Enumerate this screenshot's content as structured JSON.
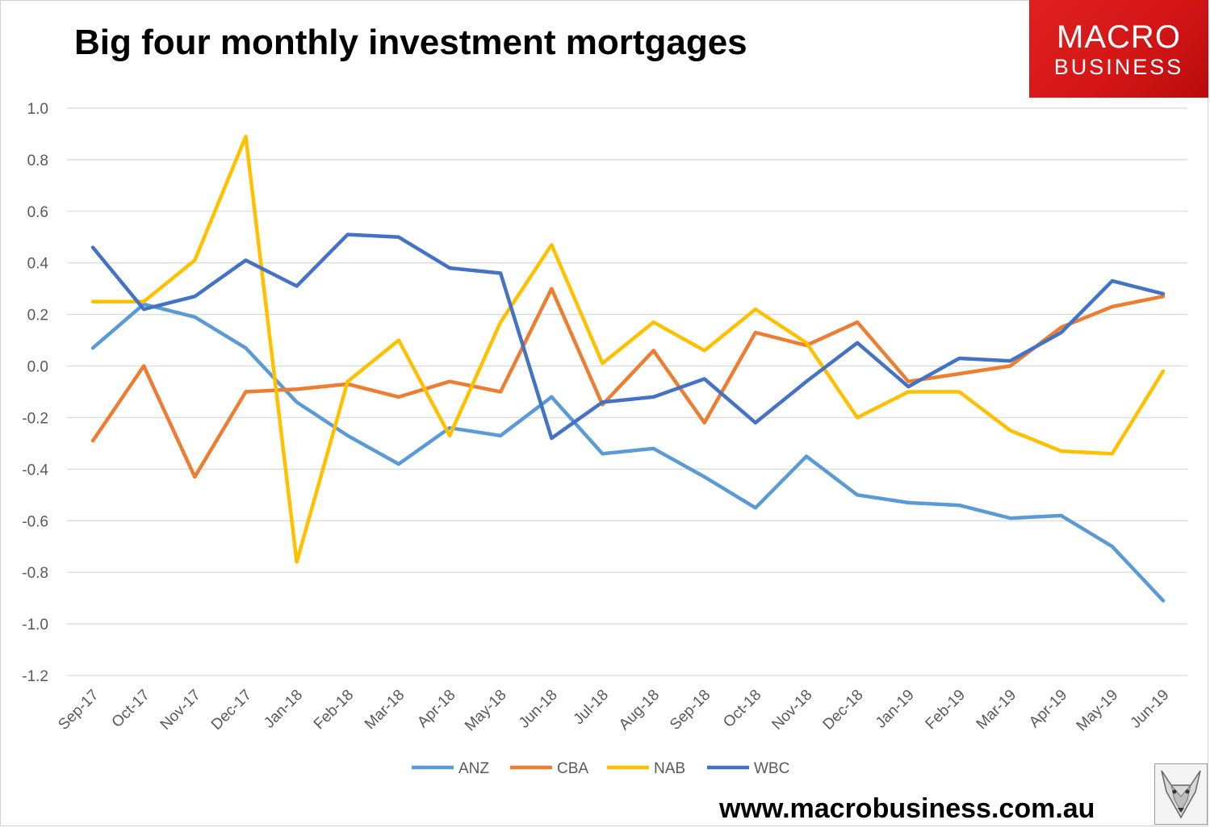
{
  "header": {
    "title": "Big four monthly investment mortgages"
  },
  "logo": {
    "line1": "MACRO",
    "line2": "BUSINESS"
  },
  "footer": {
    "website": "www.macrobusiness.com.au"
  },
  "icons": {
    "mascot": "fox-icon"
  },
  "chart_data": {
    "type": "line",
    "title": "Big four monthly investment mortgages",
    "xlabel": "",
    "ylabel": "",
    "ylim": [
      -1.2,
      1.0
    ],
    "yticks": [
      "1.0",
      "0.8",
      "0.6",
      "0.4",
      "0.2",
      "0.0",
      "-0.2",
      "-0.4",
      "-0.6",
      "-0.8",
      "-1.0",
      "-1.2"
    ],
    "grid": true,
    "legend": "bottom",
    "categories": [
      "Sep-17",
      "Oct-17",
      "Nov-17",
      "Dec-17",
      "Jan-18",
      "Feb-18",
      "Mar-18",
      "Apr-18",
      "May-18",
      "Jun-18",
      "Jul-18",
      "Aug-18",
      "Sep-18",
      "Oct-18",
      "Nov-18",
      "Dec-18",
      "Jan-19",
      "Feb-19",
      "Mar-19",
      "Apr-19",
      "May-19",
      "Jun-19"
    ],
    "series": [
      {
        "name": "ANZ",
        "color": "#5B9BD5",
        "values": [
          0.07,
          0.24,
          0.19,
          0.07,
          -0.14,
          -0.27,
          -0.38,
          -0.24,
          -0.27,
          -0.12,
          -0.34,
          -0.32,
          -0.43,
          -0.55,
          -0.35,
          -0.5,
          -0.53,
          -0.54,
          -0.59,
          -0.58,
          -0.7,
          -0.91
        ]
      },
      {
        "name": "CBA",
        "color": "#ED7D31",
        "values": [
          -0.29,
          0.0,
          -0.43,
          -0.1,
          -0.09,
          -0.07,
          -0.12,
          -0.06,
          -0.1,
          0.3,
          -0.15,
          0.06,
          -0.22,
          0.13,
          0.08,
          0.17,
          -0.06,
          -0.03,
          0.0,
          0.15,
          0.23,
          0.27
        ]
      },
      {
        "name": "NAB",
        "color": "#FFC000",
        "values": [
          0.25,
          0.25,
          0.41,
          0.89,
          -0.76,
          -0.06,
          0.1,
          -0.27,
          0.17,
          0.47,
          0.01,
          0.17,
          0.06,
          0.22,
          0.09,
          -0.2,
          -0.1,
          -0.1,
          -0.25,
          -0.33,
          -0.34,
          -0.02
        ]
      },
      {
        "name": "WBC",
        "color": "#4472C4",
        "values": [
          0.46,
          0.22,
          0.27,
          0.41,
          0.31,
          0.51,
          0.5,
          0.38,
          0.36,
          -0.28,
          -0.14,
          -0.12,
          -0.05,
          -0.22,
          -0.06,
          0.09,
          -0.08,
          0.03,
          0.02,
          0.13,
          0.33,
          0.28
        ]
      }
    ]
  }
}
